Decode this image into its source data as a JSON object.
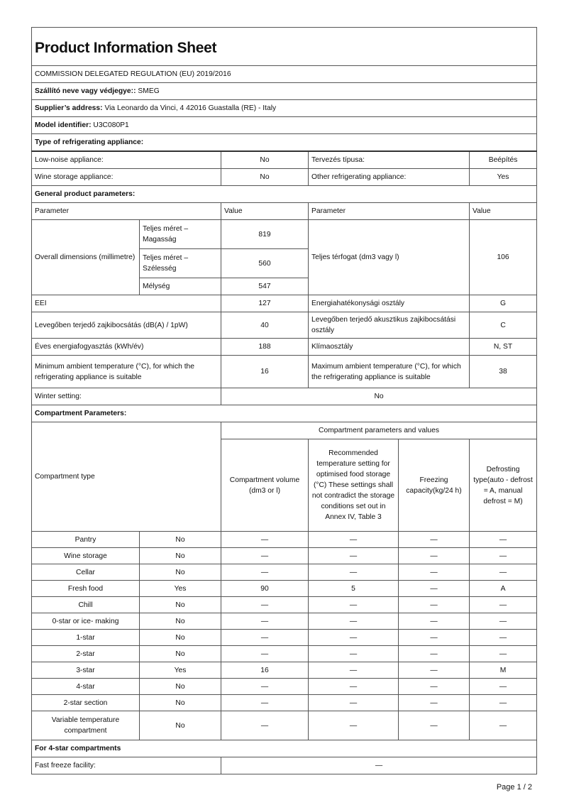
{
  "title": "Product Information Sheet",
  "regulation": "COMMISSION DELEGATED REGULATION (EU) 2019/2016",
  "supplier_name": {
    "label": "Szállító neve vagy védjegye::",
    "value": "SMEG"
  },
  "supplier_address": {
    "label": "Supplier’s address:",
    "value": "Via Leonardo da Vinci, 4 42016 Guastalla (RE) - Italy"
  },
  "model": {
    "label": "Model identifier:",
    "value": "U3C080P1"
  },
  "type_heading": "Type of refrigerating appliance:",
  "type_rows": [
    {
      "l1": "Low-noise appliance:",
      "v1": "No",
      "l2": "Tervezés típusa:",
      "v2": "Beépítés"
    },
    {
      "l1": "Wine storage appliance:",
      "v1": "No",
      "l2": "Other refrigerating appliance:",
      "v2": "Yes"
    }
  ],
  "general_heading": "General product parameters:",
  "general_header": {
    "p1": "Parameter",
    "v1": "Value",
    "p2": "Parameter",
    "v2": "Value"
  },
  "dimensions": {
    "label": "Overall dimensions (millimetre)",
    "height_label": "Teljes méret – Magasság",
    "height": "819",
    "width_label": "Teljes méret – Szélesség",
    "width": "560",
    "depth_label": "Mélység",
    "depth": "547",
    "volume_label": "Teljes térfogat (dm3 vagy l)",
    "volume": "106"
  },
  "general_rows": [
    {
      "l1": "EEI",
      "v1": "127",
      "l2": "Energiahatékonysági osztály",
      "v2": "G"
    },
    {
      "l1": "Levegőben terjedő zajkibocsátás (dB(A) / 1pW)",
      "v1": "40",
      "l2": "Levegőben terjedő akusztikus zajkibocsátási osztály",
      "v2": "C"
    },
    {
      "l1": "Éves energiafogyasztás (kWh/év)",
      "v1": "188",
      "l2": "Klímaosztály",
      "v2": "N, ST"
    },
    {
      "l1": "Minimum ambient temperature (°C), for which the refrigerating appliance is suitable",
      "v1": "16",
      "l2": "Maximum ambient temperature (°C), for which the refrigerating appliance is suitable",
      "v2": "38"
    }
  ],
  "winter": {
    "label": "Winter setting:",
    "value": "No"
  },
  "compartment_heading": "Compartment Parameters:",
  "compartment_header": {
    "type": "Compartment type",
    "group": "Compartment parameters and values",
    "volume": "Compartment volume (dm3 or l)",
    "temp": "Recommended temperature setting for optimised food storage (°C) These settings shall not contradict the storage conditions set out in Annex IV, Table 3",
    "freezing": "Freezing capacity(kg/24 h)",
    "defrost": "Defrosting type(auto - defrost = A, manual defrost = M)"
  },
  "compartments": [
    {
      "name": "Pantry",
      "present": "No",
      "volume": "—",
      "temp": "—",
      "freezing": "—",
      "defrost": "—"
    },
    {
      "name": "Wine storage",
      "present": "No",
      "volume": "—",
      "temp": "—",
      "freezing": "—",
      "defrost": "—"
    },
    {
      "name": "Cellar",
      "present": "No",
      "volume": "—",
      "temp": "—",
      "freezing": "—",
      "defrost": "—"
    },
    {
      "name": "Fresh food",
      "present": "Yes",
      "volume": "90",
      "temp": "5",
      "freezing": "—",
      "defrost": "A"
    },
    {
      "name": "Chill",
      "present": "No",
      "volume": "—",
      "temp": "—",
      "freezing": "—",
      "defrost": "—"
    },
    {
      "name": "0-star or ice- making",
      "present": "No",
      "volume": "—",
      "temp": "—",
      "freezing": "—",
      "defrost": "—"
    },
    {
      "name": "1-star",
      "present": "No",
      "volume": "—",
      "temp": "—",
      "freezing": "—",
      "defrost": "—"
    },
    {
      "name": "2-star",
      "present": "No",
      "volume": "—",
      "temp": "—",
      "freezing": "—",
      "defrost": "—"
    },
    {
      "name": "3-star",
      "present": "Yes",
      "volume": "16",
      "temp": "—",
      "freezing": "—",
      "defrost": "M"
    },
    {
      "name": "4-star",
      "present": "No",
      "volume": "—",
      "temp": "—",
      "freezing": "—",
      "defrost": "—"
    },
    {
      "name": "2-star section",
      "present": "No",
      "volume": "—",
      "temp": "—",
      "freezing": "—",
      "defrost": "—"
    },
    {
      "name": "Variable temperature compartment",
      "present": "No",
      "volume": "—",
      "temp": "—",
      "freezing": "—",
      "defrost": "—"
    }
  ],
  "four_star_heading": "For 4-star compartments",
  "fast_freeze": {
    "label": "Fast freeze facility:",
    "value": "—"
  },
  "footer": "Page 1 / 2"
}
